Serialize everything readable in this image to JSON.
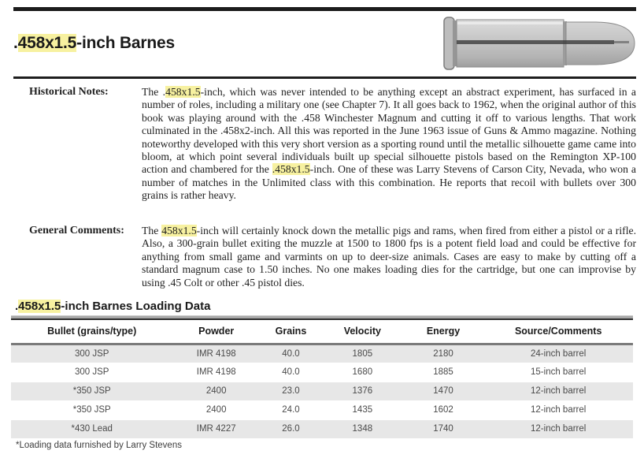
{
  "page": {
    "highlight_color": "#f7f1a0",
    "title_segments": [
      {
        "t": "."
      },
      {
        "t": "458x1.5",
        "h": true
      },
      {
        "t": "-inch Barnes"
      }
    ]
  },
  "cartridge_image": {
    "name": "cartridge-photo",
    "description": "grayscale side photo of a .458x1.5-inch Barnes cartridge, rim left, round-nose bullet right"
  },
  "historical": {
    "label": "Historical Notes:",
    "segments": [
      {
        "t": "The ."
      },
      {
        "t": "458x1.5",
        "h": true
      },
      {
        "t": "-inch, which was never intended to be anything except an abstract experiment, has surfaced in a number of roles, including a military one (see Chapter 7). It all goes back to 1962, when the original author of this book was playing around with the .458 Winchester Magnum and cutting it off to various lengths. That work culminated in the .458x2-inch. All this was reported in the June 1963 issue of Guns & Ammo magazine. Nothing noteworthy developed with this very short version as a sporting round until the metallic silhouette game came into bloom, at which point several individuals built up special silhouette pistols based on the Remington XP-100 action and chambered for the "
      },
      {
        "t": ".458x1.5",
        "h": true
      },
      {
        "t": "-inch. One of these was Larry Stevens of Carson City, Nevada, who won a number of matches in the Unlimited class with this combination. He reports that recoil with bullets over 300 grains is rather heavy."
      }
    ]
  },
  "general": {
    "label": "General Comments:",
    "segments": [
      {
        "t": "The "
      },
      {
        "t": "458x1.5",
        "h": true
      },
      {
        "t": "-inch will certainly knock down the metallic pigs and rams, when fired from either a pistol or a rifle. Also, a 300-grain bullet exiting the muzzle at 1500 to 1800 fps is a potent field load and could be effective for anything from small game and varmints on up to deer-size animals. Cases are easy to make by cutting off a standard magnum case to 1.50 inches. No one makes loading dies for the cartridge, but one can improvise by using .45 Colt or other .45 pistol dies."
      }
    ]
  },
  "loading_data": {
    "title_segments": [
      {
        "t": "."
      },
      {
        "t": "458x1.5",
        "h": true
      },
      {
        "t": "-inch Barnes Loading Data"
      }
    ],
    "columns": [
      "Bullet (grains/type)",
      "Powder",
      "Grains",
      "Velocity",
      "Energy",
      "Source/Comments"
    ],
    "rows": [
      [
        "300 JSP",
        "IMR 4198",
        "40.0",
        "1805",
        "2180",
        "24-inch barrel"
      ],
      [
        "300 JSP",
        "IMR 4198",
        "40.0",
        "1680",
        "1885",
        "15-inch barrel"
      ],
      [
        "*350 JSP",
        "2400",
        "23.0",
        "1376",
        "1470",
        "12-inch barrel"
      ],
      [
        "*350 JSP",
        "2400",
        "24.0",
        "1435",
        "1602",
        "12-inch barrel"
      ],
      [
        "*430 Lead",
        "IMR 4227",
        "26.0",
        "1348",
        "1740",
        "12-inch barrel"
      ]
    ],
    "footnote": "*Loading data furnished by Larry Stevens"
  }
}
